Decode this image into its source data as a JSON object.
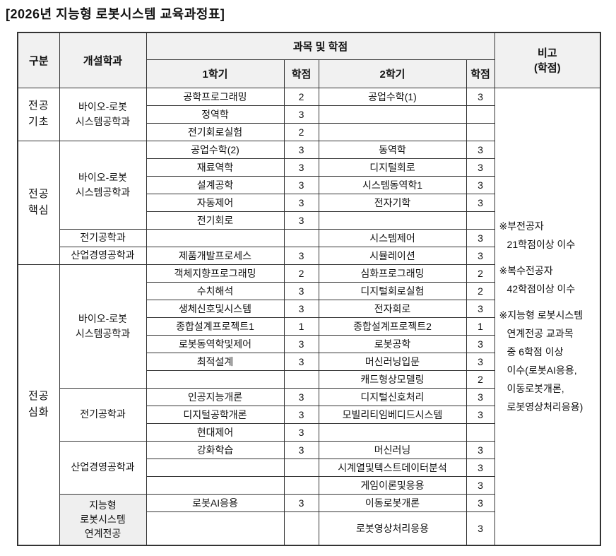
{
  "title": "[2026년 지능형 로봇시스템 교육과정표]",
  "colors": {
    "border": "#333333",
    "header_bg": "#f1f1f1",
    "shaded_cell_bg": "#efefef",
    "text": "#111111",
    "background": "#ffffff"
  },
  "table": {
    "header": {
      "gubun": "구분",
      "dept": "개설학과",
      "courses_credits": "과목 및 학점",
      "sem1": "1학기",
      "credit": "학점",
      "sem2": "2학기",
      "remarks": "비고\n(학점)"
    },
    "sections": [
      {
        "gubun": "전공\n기초",
        "groups": [
          {
            "dept": "바이오-로봇\n시스템공학과",
            "rows": [
              [
                "공학프로그래밍",
                "2",
                "공업수학(1)",
                "3"
              ],
              [
                "정역학",
                "3",
                "",
                ""
              ],
              [
                "전기회로실험",
                "2",
                "",
                ""
              ]
            ]
          }
        ]
      },
      {
        "gubun": "전공\n핵심",
        "groups": [
          {
            "dept": "바이오-로봇\n시스템공학과",
            "rows": [
              [
                "공업수학(2)",
                "3",
                "동역학",
                "3"
              ],
              [
                "재료역학",
                "3",
                "디지털회로",
                "3"
              ],
              [
                "설계공학",
                "3",
                "시스템동역학1",
                "3"
              ],
              [
                "자동제어",
                "3",
                "전자기학",
                "3"
              ],
              [
                "전기회로",
                "3",
                "",
                ""
              ]
            ]
          },
          {
            "dept": "전기공학과",
            "rows": [
              [
                "",
                "",
                "시스템제어",
                "3"
              ]
            ]
          },
          {
            "dept": "산업경영공학과",
            "rows": [
              [
                "제품개발프로세스",
                "3",
                "시뮬레이션",
                "3"
              ]
            ]
          }
        ]
      },
      {
        "gubun": "전공\n심화",
        "groups": [
          {
            "dept": "바이오-로봇\n시스템공학과",
            "rows": [
              [
                "객체지향프로그래밍",
                "2",
                "심화프로그래밍",
                "2"
              ],
              [
                "수치해석",
                "3",
                "디지털회로실험",
                "2"
              ],
              [
                "생체신호및시스템",
                "3",
                "전자회로",
                "3"
              ],
              [
                "종합설계프로젝트1",
                "1",
                "종합설계프로젝트2",
                "1"
              ],
              [
                "로봇동역학및제어",
                "3",
                "로봇공학",
                "3"
              ],
              [
                "최적설계",
                "3",
                "머신러닝입문",
                "3"
              ],
              [
                "",
                "",
                "캐드형상모델링",
                "2"
              ]
            ]
          },
          {
            "dept": "전기공학과",
            "rows": [
              [
                "인공지능개론",
                "3",
                "디지털신호처리",
                "3"
              ],
              [
                "디지털공학개론",
                "3",
                "모빌리티임베디드시스템",
                "3"
              ],
              [
                "현대제어",
                "3",
                "",
                ""
              ]
            ]
          },
          {
            "dept": "산업경영공학과",
            "rows": [
              [
                "강화학습",
                "3",
                "머신러닝",
                "3"
              ],
              [
                "",
                "",
                "시계열및텍스트데이터분석",
                "3"
              ],
              [
                "",
                "",
                "게임이론및응용",
                "3"
              ]
            ]
          },
          {
            "dept": "지능형\n로봇시스템\n연계전공",
            "shaded": true,
            "rows": [
              [
                "로봇AI응용",
                "3",
                "이동로봇개론",
                "3"
              ],
              [
                "",
                "",
                "로봇영상처리응용",
                "3"
              ]
            ]
          }
        ]
      }
    ],
    "remarks_notes": [
      [
        "※부전공자",
        "21학점이상 이수"
      ],
      [
        "※복수전공자",
        "42학점이상 이수"
      ],
      [
        "※지능형 로봇시스템",
        "연계전공 교과목",
        "중 6학점 이상",
        "이수(로봇AI응용,",
        "이동로봇개론,",
        "로봇영상처리응용)"
      ]
    ]
  }
}
